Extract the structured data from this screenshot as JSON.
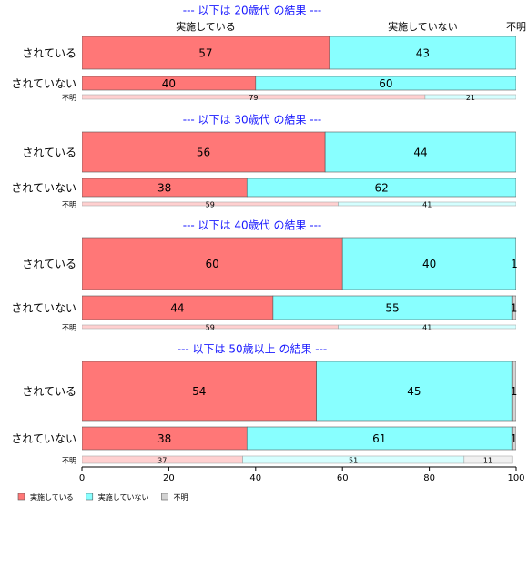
{
  "chart_data": [
    {
      "type": "bar",
      "title": "--- 以下は 20歳代 の結果 ---",
      "categories": [
        "されている",
        "されていない",
        "不明"
      ],
      "series": [
        {
          "name": "実施している",
          "color": "#ff7777",
          "values": [
            57,
            40,
            79
          ]
        },
        {
          "name": "実施していない",
          "color": "#88ffff",
          "values": [
            43,
            60,
            21
          ]
        },
        {
          "name": "不明",
          "color": "#d3d3d3",
          "values": [
            0,
            0,
            0
          ]
        }
      ]
    },
    {
      "type": "bar",
      "title": "--- 以下は 30歳代 の結果 ---",
      "categories": [
        "されている",
        "されていない",
        "不明"
      ],
      "series": [
        {
          "values": [
            56,
            38,
            59
          ]
        },
        {
          "values": [
            44,
            62,
            41
          ]
        },
        {
          "values": [
            0,
            0,
            0
          ]
        }
      ]
    },
    {
      "type": "bar",
      "title": "--- 以下は 40歳代 の結果 ---",
      "categories": [
        "されている",
        "されていない",
        "不明"
      ],
      "series": [
        {
          "values": [
            60,
            44,
            59
          ]
        },
        {
          "values": [
            40,
            55,
            41
          ]
        },
        {
          "values": [
            1,
            1,
            0
          ]
        }
      ]
    },
    {
      "type": "bar",
      "title": "--- 以下は 50歳以上 の結果 ---",
      "categories": [
        "されている",
        "されていない",
        "不明"
      ],
      "series": [
        {
          "values": [
            54,
            38,
            37
          ]
        },
        {
          "values": [
            45,
            61,
            51
          ]
        },
        {
          "values": [
            1,
            1,
            11
          ]
        }
      ],
      "xlim": [
        0,
        100
      ],
      "xticks": [
        0,
        20,
        40,
        60,
        80,
        100
      ]
    }
  ]
}
